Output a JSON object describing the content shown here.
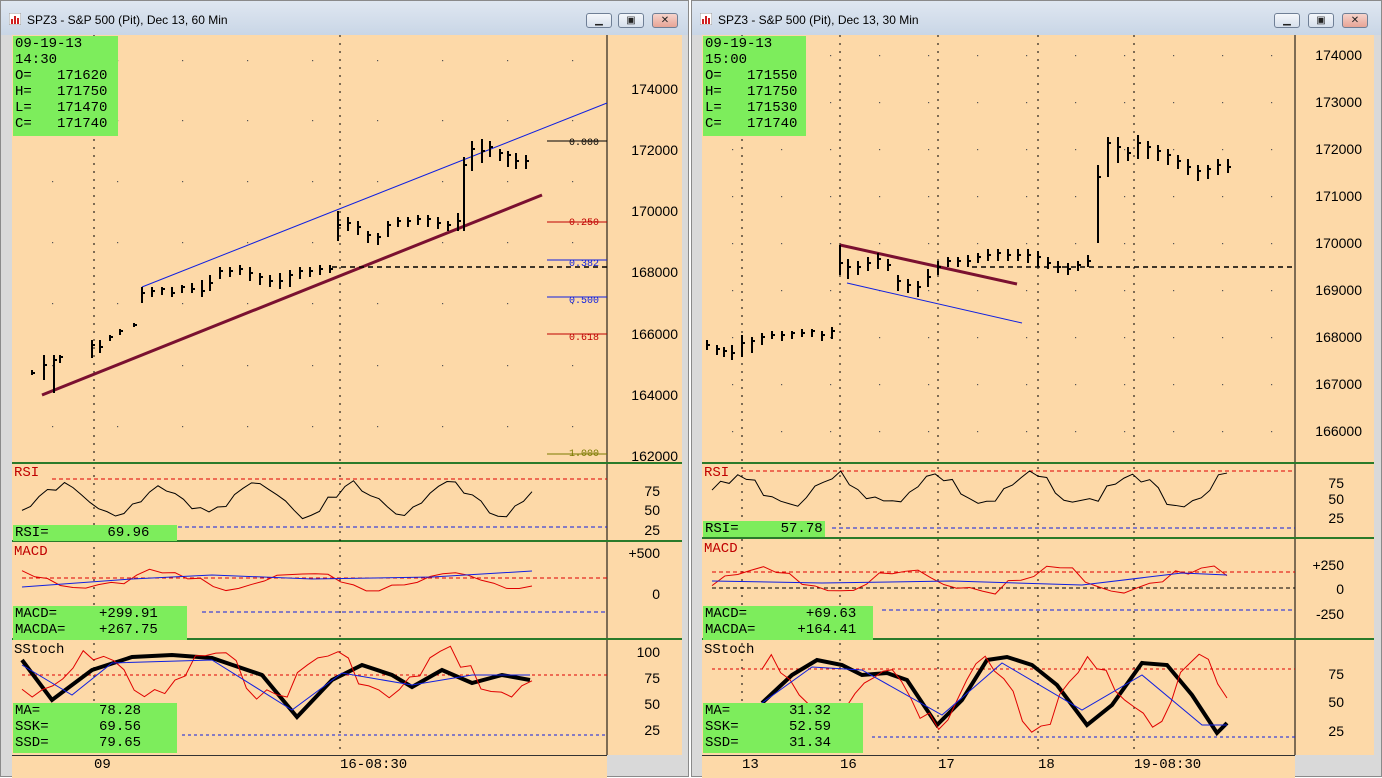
{
  "left": {
    "title": "SPZ3 - S&P 500 (Pit), Dec 13, 60 Min",
    "info": {
      "date": "09-19-13",
      "time": "14:30",
      "o": "O=   171620",
      "h": "H=   171750",
      "l": "L=   171470",
      "c": "C=   171740"
    },
    "price_ticks": [
      "174000",
      "172000",
      "170000",
      "168000",
      "166000",
      "164000",
      "162000"
    ],
    "fib_levels": [
      "0.000",
      "0.250",
      "0.382",
      "0.500",
      "0.618",
      "1.000"
    ],
    "rsi": {
      "label": "RSI",
      "value_text": "RSI=       69.96",
      "ticks": [
        "75",
        "50",
        "25"
      ]
    },
    "macd": {
      "label": "MACD",
      "macd_text": "MACD=     +299.91",
      "macda_text": "MACDA=    +267.75",
      "ticks": [
        "+500",
        "0"
      ]
    },
    "sstoch": {
      "label": "SStoch",
      "ma_text": "MA=       78.28",
      "ssk_text": "SSK=      69.56",
      "ssd_text": "SSD=      79.65",
      "ticks": [
        "100",
        "75",
        "50",
        "25"
      ]
    },
    "time_labels": [
      "09",
      "16-08:30"
    ]
  },
  "right": {
    "title": "SPZ3 - S&P 500 (Pit), Dec 13, 30 Min",
    "info": {
      "date": "09-19-13",
      "time": "15:00",
      "o": "O=   171550",
      "h": "H=   171750",
      "l": "L=   171530",
      "c": "C=   171740"
    },
    "price_ticks": [
      "174000",
      "173000",
      "172000",
      "171000",
      "170000",
      "169000",
      "168000",
      "167000",
      "166000"
    ],
    "rsi": {
      "label": "RSI",
      "value_text": "RSI=     57.78",
      "ticks": [
        "75",
        "50",
        "25"
      ]
    },
    "macd": {
      "label": "MACD",
      "macd_text": "MACD=       +69.63",
      "macda_text": "MACDA=     +164.41",
      "ticks": [
        "+250",
        "0",
        "-250"
      ]
    },
    "sstoch": {
      "label": "SStoch",
      "ma_text": "MA=       31.32",
      "ssk_text": "SSK=      52.59",
      "ssd_text": "SSD=      31.34",
      "ticks": [
        "75",
        "50",
        "25"
      ]
    },
    "time_labels": [
      "13",
      "16",
      "17",
      "18",
      "19-08:30"
    ]
  },
  "colors": {
    "chart_bg": "#fdd9a8",
    "info_bg": "#7ded5c",
    "trend": "#7a1030",
    "channel": "#1020e0",
    "rsi_red": "#e00000"
  },
  "icons": {
    "window": "chart-window-icon",
    "minimize": "minimize-icon",
    "restore": "restore-icon",
    "close": "close-icon",
    "scroll": "scroll-arrow-icon"
  }
}
